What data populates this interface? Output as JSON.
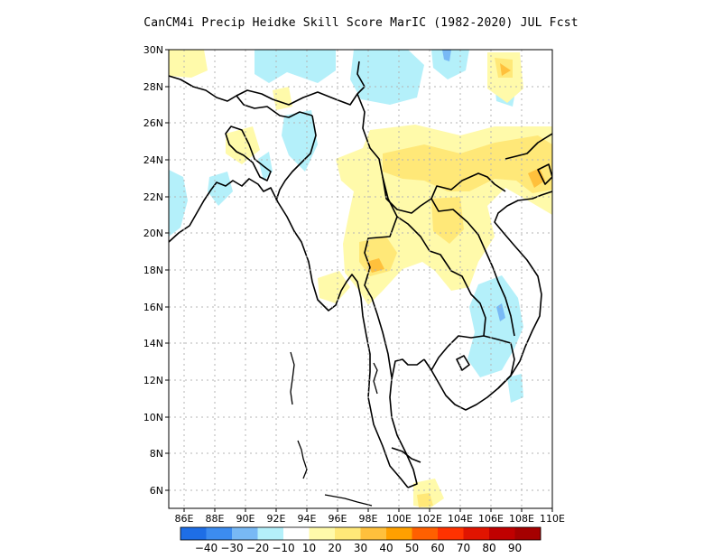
{
  "title": "CanCM4i Precip Heidke Skill Score MarIC (1982-2020) JUL Fcst",
  "map": {
    "lon_range": [
      85,
      110
    ],
    "lat_range": [
      5,
      30
    ],
    "lon_ticks": [
      "86E",
      "88E",
      "90E",
      "92E",
      "94E",
      "96E",
      "98E",
      "100E",
      "102E",
      "104E",
      "106E",
      "108E",
      "110E"
    ],
    "lat_ticks": [
      "30N",
      "28N",
      "26N",
      "24N",
      "22N",
      "20N",
      "18N",
      "16N",
      "14N",
      "12N",
      "10N",
      "8N",
      "6N"
    ],
    "grid": "dotted",
    "colors": {
      "land_border": "#000000",
      "grid": "#b4b4b4"
    }
  },
  "colorbar": {
    "colors": [
      "#1e6ee6",
      "#3c8cf0",
      "#78b9f5",
      "#b4f0fa",
      "#ffffff",
      "#fffaaa",
      "#ffe878",
      "#ffc03c",
      "#ffa000",
      "#ff6000",
      "#ff3200",
      "#e11400",
      "#c00000",
      "#a50000"
    ],
    "labels": [
      "-40",
      "-30",
      "-20",
      "-10",
      "10",
      "20",
      "30",
      "40",
      "50",
      "60",
      "70",
      "80",
      "90"
    ]
  }
}
